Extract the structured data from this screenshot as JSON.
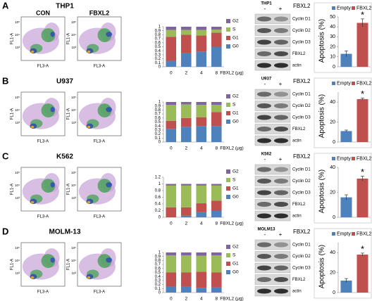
{
  "panels": [
    {
      "label": "A",
      "cell_line": "THP1",
      "flow_labels": [
        "CON",
        "FBXL2"
      ],
      "blot": {
        "title": "THP1",
        "lanes": [
          "-",
          "+"
        ],
        "treatment": "FBXL2",
        "bands": [
          "Cyclin D1",
          "Cyclin D2",
          "Cyclin D3",
          "FBXL2",
          "actin"
        ]
      }
    },
    {
      "label": "B",
      "cell_line": "U937",
      "blot": {
        "title": "U937",
        "lanes": [
          "-",
          "+"
        ],
        "treatment": "FBXL2",
        "bands": [
          "Cyclin D1",
          "Cyclin D2",
          "Cyclin D3",
          "FBXL2",
          "actin"
        ]
      }
    },
    {
      "label": "C",
      "cell_line": "K562",
      "blot": {
        "title": "K562",
        "lanes": [
          "-",
          "+"
        ],
        "treatment": "FBXL2",
        "bands": [
          "Cyclin D1",
          "Cyclin D2",
          "Cyclin D3",
          "FBXL2",
          "actin"
        ]
      }
    },
    {
      "label": "D",
      "cell_line": "MOLM-13",
      "blot": {
        "title": "MOLM13",
        "lanes": [
          "-",
          "+"
        ],
        "treatment": "FBXL2",
        "bands": [
          "Cyclin D1",
          "Cyclin D2",
          "Cyclin D3",
          "FBXL2",
          "actin"
        ]
      }
    }
  ],
  "flow_axes": {
    "y_label": "FL1-A",
    "x_label": "FL3-A",
    "ticks": [
      "10⁵",
      "10⁴",
      "10³"
    ]
  },
  "chart_data": [
    {
      "type": "stacked_bar",
      "categories": [
        "0",
        "2",
        "4",
        "8"
      ],
      "x_label": "FBXL2 (μg)",
      "series": [
        {
          "name": "G0",
          "color": "#4f81bd",
          "values": [
            0.15,
            0.35,
            0.38,
            0.5
          ]
        },
        {
          "name": "G1",
          "color": "#c0504d",
          "values": [
            0.6,
            0.45,
            0.4,
            0.35
          ]
        },
        {
          "name": "S",
          "color": "#9bbb59",
          "values": [
            0.17,
            0.12,
            0.14,
            0.08
          ]
        },
        {
          "name": "G2",
          "color": "#8064a2",
          "values": [
            0.08,
            0.08,
            0.08,
            0.07
          ]
        }
      ],
      "ylim": [
        0,
        1
      ],
      "yticks": [
        0,
        0.1,
        0.2,
        0.3,
        0.4,
        0.5,
        0.6,
        0.7,
        0.8,
        0.9,
        1
      ]
    },
    {
      "type": "bar_error",
      "y_label": "Apoptosis (%)",
      "series": [
        {
          "name": "Empty",
          "color": "#4f81bd",
          "values": [
            13
          ],
          "errors": [
            3
          ]
        },
        {
          "name": "FBXL2",
          "color": "#c0504d",
          "values": [
            44
          ],
          "errors": [
            4
          ]
        }
      ],
      "ylim": [
        0,
        50
      ],
      "yticks": [
        0,
        10,
        20,
        30,
        40,
        50
      ],
      "annotation": "*"
    },
    {
      "type": "stacked_bar",
      "categories": [
        "0",
        "2",
        "4",
        "8"
      ],
      "x_label": "FBXL2 (μg)",
      "series": [
        {
          "name": "G0",
          "color": "#4f81bd",
          "values": [
            0.33,
            0.38,
            0.4,
            0.4
          ]
        },
        {
          "name": "G1",
          "color": "#c0504d",
          "values": [
            0.2,
            0.22,
            0.22,
            0.35
          ]
        },
        {
          "name": "S",
          "color": "#9bbb59",
          "values": [
            0.4,
            0.34,
            0.31,
            0.18
          ]
        },
        {
          "name": "G2",
          "color": "#8064a2",
          "values": [
            0.07,
            0.06,
            0.07,
            0.07
          ]
        }
      ],
      "ylim": [
        0,
        1
      ],
      "yticks": [
        0,
        0.1,
        0.2,
        0.3,
        0.4,
        0.5,
        0.6,
        0.7,
        0.8,
        0.9,
        1
      ]
    },
    {
      "type": "bar_error",
      "y_label": "Apoptosis (%)",
      "series": [
        {
          "name": "Empty",
          "color": "#4f81bd",
          "values": [
            11
          ],
          "errors": [
            1
          ]
        },
        {
          "name": "FBXL2",
          "color": "#c0504d",
          "values": [
            43
          ],
          "errors": [
            1
          ]
        }
      ],
      "ylim": [
        0,
        50
      ],
      "yticks": [
        0,
        20,
        40
      ],
      "annotation": "*"
    },
    {
      "type": "stacked_bar",
      "categories": [
        "0",
        "2",
        "4",
        "8"
      ],
      "x_label": "FBXL2 (μg)",
      "series": [
        {
          "name": "G0",
          "color": "#4f81bd",
          "values": [
            0,
            0.05,
            0.15,
            0.2
          ]
        },
        {
          "name": "G1",
          "color": "#c0504d",
          "values": [
            0.3,
            0.25,
            0.27,
            0.3
          ]
        },
        {
          "name": "S",
          "color": "#9bbb59",
          "values": [
            0.65,
            0.65,
            0.53,
            0.45
          ]
        },
        {
          "name": "G2",
          "color": "#8064a2",
          "values": [
            0.05,
            0.05,
            0.05,
            0.05
          ]
        }
      ],
      "ylim": [
        0,
        1.2
      ],
      "yticks": [
        0,
        0.2,
        0.4,
        0.6,
        0.8,
        1,
        1.2
      ]
    },
    {
      "type": "bar_error",
      "y_label": "Apoptosis (%)",
      "series": [
        {
          "name": "Empty",
          "color": "#4f81bd",
          "values": [
            16
          ],
          "errors": [
            2
          ]
        },
        {
          "name": "FBXL2",
          "color": "#c0504d",
          "values": [
            31
          ],
          "errors": [
            2
          ]
        }
      ],
      "ylim": [
        0,
        40
      ],
      "yticks": [
        0,
        20,
        40
      ],
      "annotation": "*"
    },
    {
      "type": "stacked_bar",
      "categories": [
        "0",
        "2",
        "4",
        "8"
      ],
      "x_label": "FBXL2 (μg)",
      "series": [
        {
          "name": "G0",
          "color": "#4f81bd",
          "values": [
            0.15,
            0.15,
            0.12,
            0.13
          ]
        },
        {
          "name": "G1",
          "color": "#c0504d",
          "values": [
            0.35,
            0.35,
            0.4,
            0.37
          ]
        },
        {
          "name": "S",
          "color": "#9bbb59",
          "values": [
            0.43,
            0.43,
            0.4,
            0.43
          ]
        },
        {
          "name": "G2",
          "color": "#8064a2",
          "values": [
            0.07,
            0.07,
            0.08,
            0.07
          ]
        }
      ],
      "ylim": [
        0,
        1
      ],
      "yticks": [
        0,
        0.1,
        0.2,
        0.3,
        0.4,
        0.5,
        0.6,
        0.7,
        0.8,
        0.9,
        1
      ]
    },
    {
      "type": "bar_error",
      "y_label": "Apoptosis (%)",
      "series": [
        {
          "name": "Empty",
          "color": "#4f81bd",
          "values": [
            12
          ],
          "errors": [
            2
          ]
        },
        {
          "name": "FBXL2",
          "color": "#c0504d",
          "values": [
            38
          ],
          "errors": [
            1.5
          ]
        }
      ],
      "ylim": [
        0,
        50
      ],
      "yticks": [
        0,
        20,
        40
      ],
      "annotation": "*"
    }
  ]
}
